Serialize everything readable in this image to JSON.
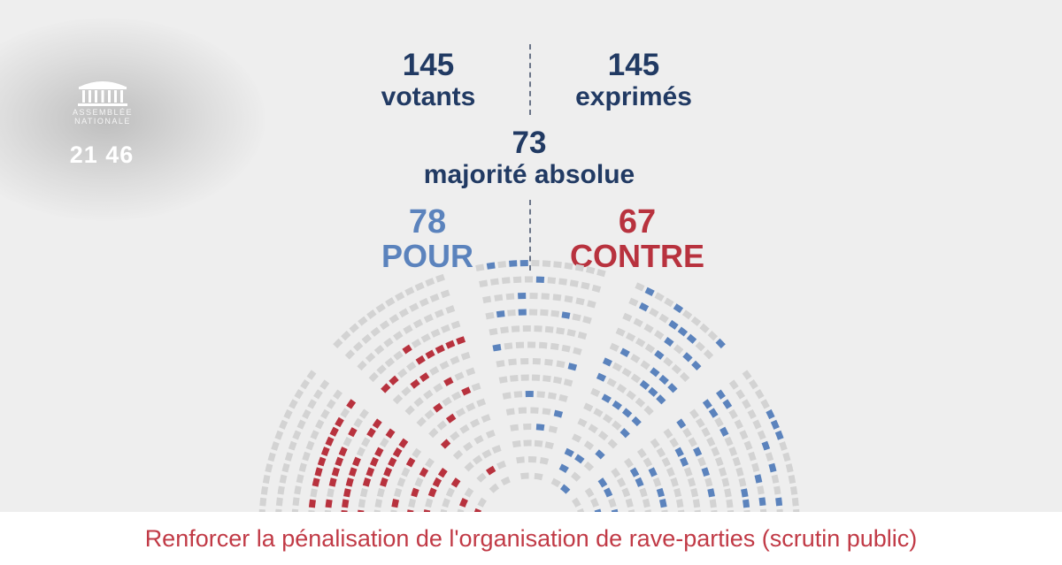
{
  "logo": {
    "icon": "building-icon",
    "line1": "ASSEMBLÉE",
    "line2": "NATIONALE"
  },
  "clock": "21 46",
  "vote": {
    "votants": {
      "value": "145",
      "label": "votants"
    },
    "exprimes": {
      "value": "145",
      "label": "exprimés"
    },
    "majorite": {
      "value": "73",
      "label": "majorité absolue"
    },
    "pour": {
      "value": "78",
      "label": "POUR"
    },
    "contre": {
      "value": "67",
      "label": "CONTRE"
    }
  },
  "colors": {
    "navy": "#213a63",
    "pour": "#5b83bd",
    "contre": "#b8323e",
    "seat_empty": "#d3d3d3",
    "footer_text": "#c13a46"
  },
  "hemicycle": {
    "pour_count": 78,
    "contre_count": 67
  },
  "footer": {
    "title": "Renforcer la pénalisation de l'organisation de rave-parties (scrutin public)"
  }
}
